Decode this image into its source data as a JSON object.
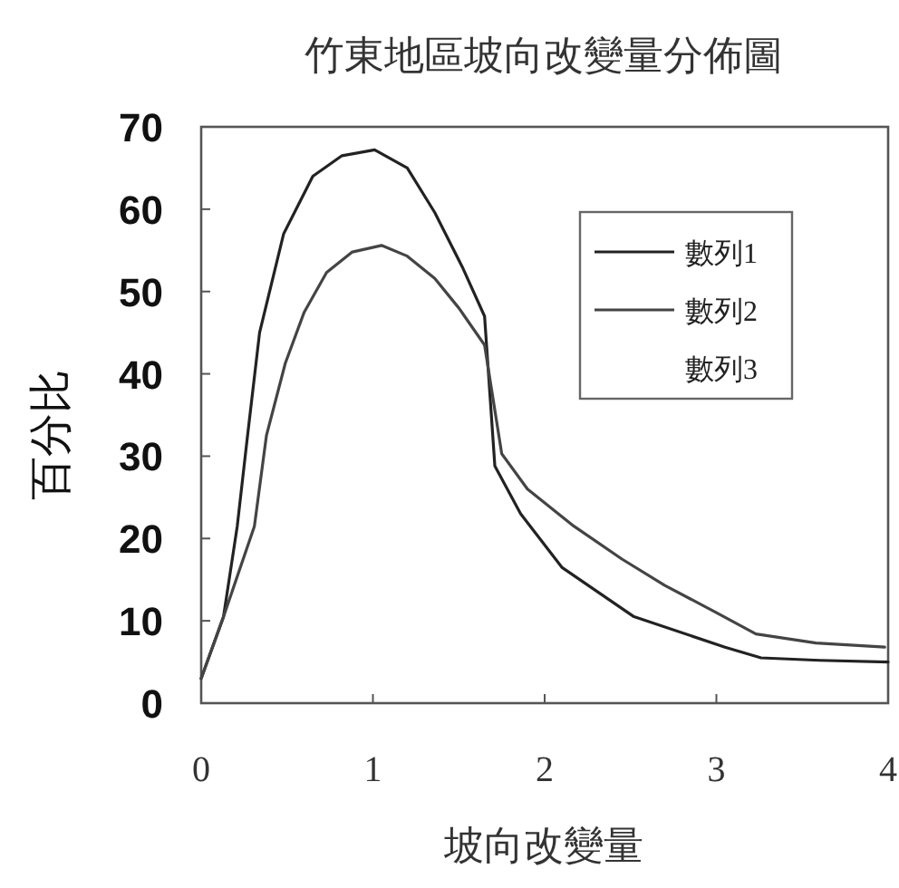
{
  "chart_data": {
    "type": "line",
    "title": "竹東地區坡向改變量分佈圖",
    "xlabel": "坡向改變量",
    "ylabel": "百分比",
    "xlim": [
      0,
      4
    ],
    "ylim": [
      0,
      70
    ],
    "xticks": [
      0,
      1,
      2,
      3,
      4
    ],
    "yticks": [
      0,
      10,
      20,
      30,
      40,
      50,
      60,
      70
    ],
    "legend": "top right",
    "grid": false,
    "marker": "none",
    "line_style": "solid",
    "series": [
      {
        "name": "數列1",
        "color": "#222222",
        "x": [
          0,
          0.13,
          0.21,
          0.27,
          0.34,
          0.48,
          0.65,
          0.82,
          1.01,
          1.2,
          1.36,
          1.52,
          1.65,
          1.71,
          1.86,
          2.1,
          2.52,
          3.05,
          3.26,
          3.6,
          4
        ],
        "values": [
          3,
          10.5,
          21.5,
          32.5,
          45,
          57,
          64,
          66.5,
          67.2,
          65,
          59.6,
          53,
          47,
          28.8,
          23,
          16.5,
          10.5,
          6.8,
          5.5,
          5.2,
          5
        ]
      },
      {
        "name": "數列2",
        "color": "#444444",
        "x": [
          0,
          0.13,
          0.31,
          0.38,
          0.49,
          0.6,
          0.73,
          0.88,
          1.05,
          1.2,
          1.36,
          1.5,
          1.65,
          1.75,
          1.9,
          2.17,
          2.45,
          2.7,
          3.0,
          3.23,
          3.58,
          3.98
        ],
        "values": [
          3,
          10.5,
          21.5,
          32.5,
          41.3,
          47.5,
          52.3,
          54.8,
          55.6,
          54.3,
          51.6,
          48,
          43.5,
          30.3,
          26,
          21.5,
          17.5,
          14.3,
          11,
          8.4,
          7.3,
          6.8
        ]
      },
      {
        "name": "數列3"
      }
    ]
  }
}
